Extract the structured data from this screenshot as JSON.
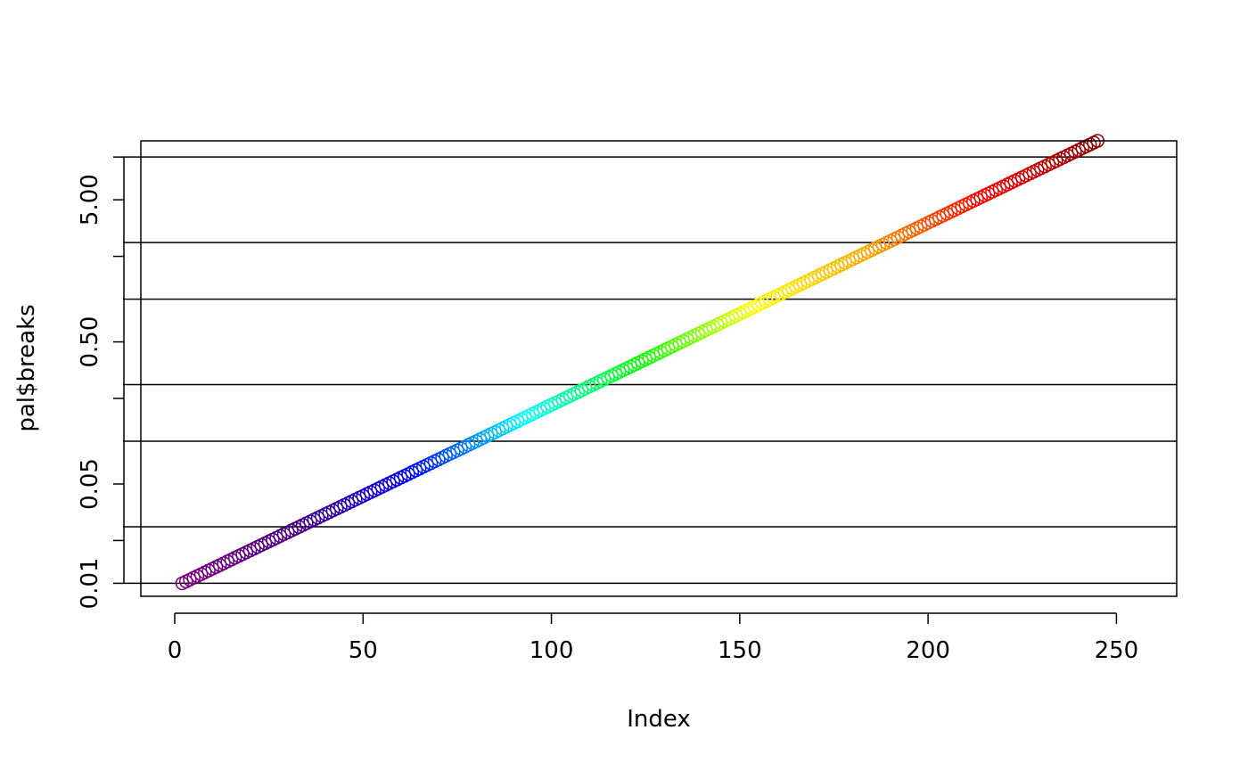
{
  "chart_data": {
    "type": "scatter",
    "xlabel": "Index",
    "ylabel": "pal$breaks",
    "y_scale": "log10",
    "xlim": [
      -9,
      266
    ],
    "ylim": [
      0.0081,
      13
    ],
    "x_ticks": [
      0,
      50,
      100,
      150,
      200,
      250
    ],
    "x_tick_labels": [
      "0",
      "50",
      "100",
      "150",
      "200",
      "250"
    ],
    "y_ticks": [
      0.01,
      0.02,
      0.05,
      0.2,
      0.5,
      2,
      5,
      10
    ],
    "y_tick_labels": [
      "0.01",
      "",
      "0.05",
      "",
      "0.50",
      "",
      "5.00",
      ""
    ],
    "hlines": [
      0.01,
      0.025,
      0.1,
      0.25,
      1,
      2.5,
      10
    ],
    "grid": false,
    "legend": "none",
    "series": [
      {
        "x_start": 2,
        "x_end": 245,
        "y_start": 0.01,
        "y_end": 13,
        "progression": "geometric",
        "marker": "open-circle",
        "colors": [
          "#800080",
          "#4b0082",
          "#0000ff",
          "#00ffff",
          "#00ff00",
          "#ffff00",
          "#ffa500",
          "#ff0000",
          "#8b0000"
        ]
      }
    ]
  }
}
